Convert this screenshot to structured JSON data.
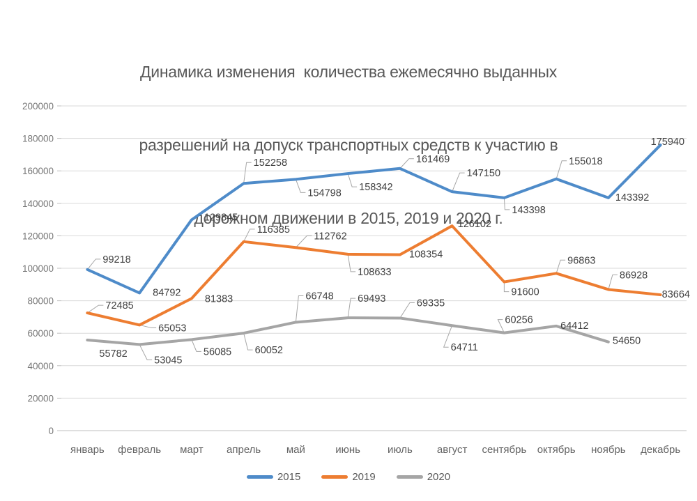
{
  "chart_data": {
    "type": "line",
    "title": "Динамика изменения количества ежемесячно выданных разрешений на допуск транспортных средств к участию в дорожном движении в 2015, 2019 и 2020 г.",
    "title_lines": [
      "Динамика изменения  количества ежемесячно выданных",
      "разрешений на допуск транспортных средств к участию в",
      "дорожном движении в 2015, 2019 и 2020 г."
    ],
    "categories": [
      "январь",
      "февраль",
      "март",
      "апрель",
      "май",
      "июнь",
      "июль",
      "август",
      "сентябрь",
      "октябрь",
      "ноябрь",
      "декабрь"
    ],
    "series": [
      {
        "name": "2015",
        "color": "#4E8BC9",
        "values": [
          99218,
          84792,
          129845,
          152258,
          154798,
          158342,
          161469,
          147150,
          143398,
          155018,
          143392,
          175940
        ]
      },
      {
        "name": "2019",
        "color": "#ED7D31",
        "values": [
          72485,
          65053,
          81383,
          116385,
          112762,
          108633,
          108354,
          126102,
          91600,
          96863,
          86928,
          83664
        ]
      },
      {
        "name": "2020",
        "color": "#A5A5A5",
        "values": [
          55782,
          53045,
          56085,
          60052,
          66748,
          69493,
          69335,
          64711,
          60256,
          64412,
          54650,
          null
        ]
      }
    ],
    "yticks": [
      0,
      20000,
      40000,
      60000,
      80000,
      100000,
      120000,
      140000,
      160000,
      180000,
      200000
    ],
    "ylim": [
      0,
      200000
    ],
    "grid": true,
    "data_labels": true,
    "legend_position": "bottom",
    "colors": {
      "gridline": "#D9D9D9",
      "axis": "#BFBFBF",
      "tick_label": "#767676",
      "month_label": "#646464",
      "data_label": "#404040",
      "leader_line": "#A6A6A6",
      "title": "#595959"
    },
    "label_offsets": [
      [
        [
          22,
          -22,
          1
        ],
        [
          19,
          -8,
          0
        ],
        [
          18,
          -11,
          0
        ],
        [
          14,
          -37,
          1
        ],
        [
          17,
          12,
          1
        ],
        [
          16,
          12,
          1
        ],
        [
          23,
          -21,
          1
        ],
        [
          21,
          -34,
          1
        ],
        [
          11,
          10,
          1
        ],
        [
          18,
          -33,
          1
        ],
        [
          10,
          -8,
          0
        ],
        [
          -14,
          -12,
          0
        ]
      ],
      [
        [
          26,
          -18,
          1
        ],
        [
          27,
          -3,
          1
        ],
        [
          19,
          -7,
          0
        ],
        [
          19,
          -25,
          1
        ],
        [
          26,
          -24,
          1
        ],
        [
          14,
          18,
          1
        ],
        [
          13,
          -8,
          0
        ],
        [
          8,
          -10,
          0
        ],
        [
          10,
          7,
          1
        ],
        [
          16,
          -26,
          1
        ],
        [
          16,
          -28,
          1
        ],
        [
          2,
          -8,
          0
        ]
      ],
      [
        [
          17,
          12,
          0
        ],
        [
          21,
          15,
          1
        ],
        [
          17,
          10,
          1
        ],
        [
          16,
          17,
          1
        ],
        [
          14,
          -45,
          1
        ],
        [
          14,
          -35,
          1
        ],
        [
          24,
          -29,
          1
        ],
        [
          -2,
          24,
          1
        ],
        [
          1,
          -26,
          1
        ],
        [
          6,
          -8,
          0
        ],
        [
          6,
          -9,
          0
        ],
        null
      ]
    ]
  }
}
